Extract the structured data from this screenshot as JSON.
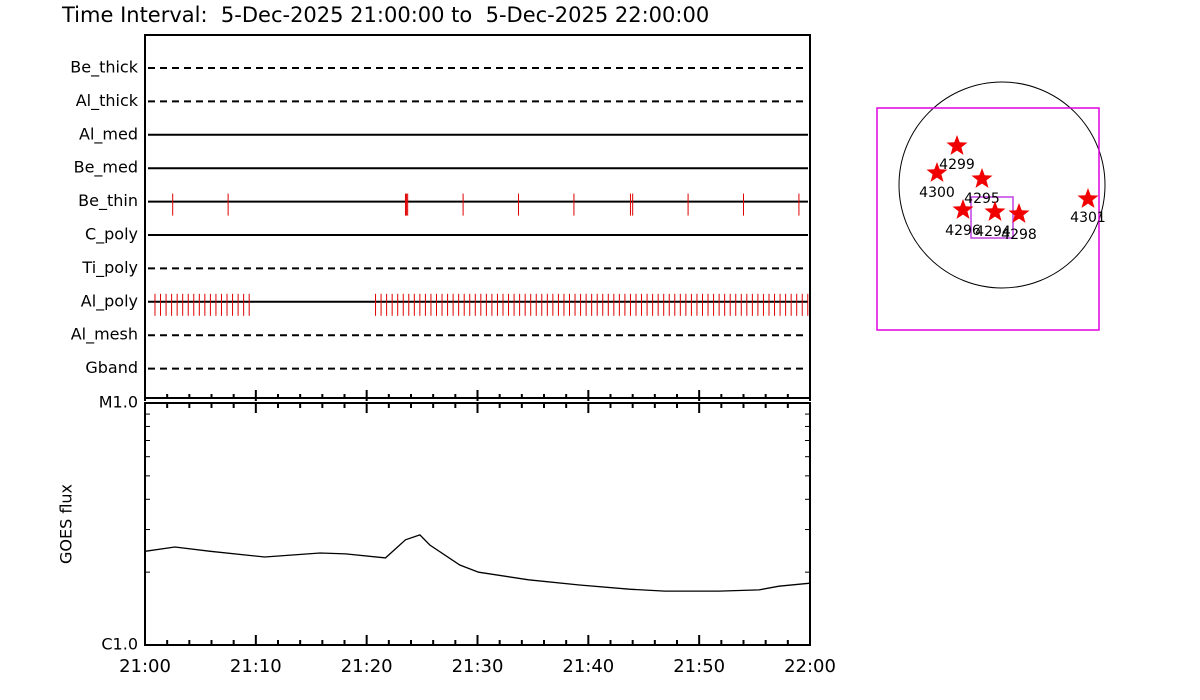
{
  "title": "Time Interval:  5-Dec-2025 21:00:00 to  5-Dec-2025 22:00:00",
  "chart_data": [
    {
      "type": "timeline",
      "xlim": [
        0,
        60
      ],
      "xticks": [
        0,
        10,
        20,
        30,
        40,
        50,
        60
      ],
      "xminorticks": [
        2,
        4,
        6,
        8,
        12,
        14,
        16,
        18,
        22,
        24,
        26,
        28,
        32,
        34,
        36,
        38,
        42,
        44,
        46,
        48,
        52,
        54,
        56,
        58
      ],
      "color": "#e00000",
      "filters": [
        {
          "name": "Be_thick",
          "style": "dashed",
          "times": []
        },
        {
          "name": "Al_thick",
          "style": "dashed",
          "times": []
        },
        {
          "name": "Al_med",
          "style": "solid",
          "times": []
        },
        {
          "name": "Be_med",
          "style": "solid",
          "times": []
        },
        {
          "name": "Be_thin",
          "style": "solid",
          "times": [
            2.5,
            7.5,
            23.5,
            23.6,
            23.7,
            28.7,
            33.7,
            38.7,
            43.8,
            44.0,
            49.0,
            54.0,
            59.0
          ]
        },
        {
          "name": "C_poly",
          "style": "solid",
          "times": []
        },
        {
          "name": "Ti_poly",
          "style": "dashed",
          "times": []
        },
        {
          "name": "Al_poly",
          "style": "solid",
          "times": [
            0.9,
            1.4,
            1.9,
            2.4,
            2.9,
            3.4,
            3.9,
            4.4,
            4.9,
            5.4,
            5.9,
            6.4,
            6.9,
            7.4,
            7.9,
            8.4,
            8.9,
            9.4,
            20.8,
            21.3,
            21.8,
            22.3,
            22.8,
            23.3,
            23.8,
            24.3,
            24.8,
            25.3,
            25.8,
            26.3,
            26.8,
            27.3,
            27.8,
            28.3,
            28.8,
            29.3,
            29.8,
            30.3,
            30.8,
            31.3,
            31.8,
            32.3,
            32.8,
            33.3,
            33.8,
            34.3,
            34.8,
            35.3,
            35.8,
            36.3,
            36.8,
            37.3,
            37.8,
            38.3,
            38.8,
            39.3,
            39.8,
            40.3,
            40.8,
            41.3,
            41.8,
            42.3,
            42.8,
            43.3,
            43.8,
            44.3,
            44.8,
            45.3,
            45.8,
            46.3,
            46.8,
            47.3,
            47.8,
            48.3,
            48.8,
            49.3,
            49.8,
            50.3,
            50.8,
            51.3,
            51.8,
            52.3,
            52.8,
            53.3,
            53.8,
            54.3,
            54.8,
            55.3,
            55.8,
            56.3,
            56.8,
            57.3,
            57.8,
            58.3,
            58.8,
            59.3,
            59.8
          ]
        },
        {
          "name": "Al_mesh",
          "style": "dashed",
          "times": []
        },
        {
          "name": "Gband",
          "style": "dashed",
          "times": []
        }
      ]
    },
    {
      "type": "line",
      "y_label": "GOES flux",
      "log_y": true,
      "color": "#000000",
      "xlim": [
        0,
        60
      ],
      "xticks": [
        {
          "value": 0,
          "label": "21:00"
        },
        {
          "value": 10,
          "label": "21:10"
        },
        {
          "value": 20,
          "label": "21:20"
        },
        {
          "value": 30,
          "label": "21:30"
        },
        {
          "value": 40,
          "label": "21:40"
        },
        {
          "value": 50,
          "label": "21:50"
        },
        {
          "value": 60,
          "label": "22:00"
        }
      ],
      "xminorticks": [
        2,
        4,
        6,
        8,
        12,
        14,
        16,
        18,
        22,
        24,
        26,
        28,
        32,
        34,
        36,
        38,
        42,
        44,
        46,
        48,
        52,
        54,
        56,
        58
      ],
      "ylim": [
        1e-06,
        1e-05
      ],
      "yticks": [
        {
          "value": 1e-06,
          "label": "C1.0"
        },
        {
          "value": 1e-05,
          "label": "M1.0"
        }
      ],
      "yminorticks": [
        2e-06,
        3e-06,
        4e-06,
        5e-06,
        6e-06,
        7e-06,
        8e-06,
        9e-06
      ],
      "x": [
        0,
        2.7,
        5.9,
        10.8,
        15.8,
        18.1,
        21.7,
        23.5,
        24.8,
        25.7,
        28.4,
        30.1,
        34.6,
        39.2,
        43.7,
        46.9,
        51.8,
        55.4,
        57.2,
        60
      ],
      "values": [
        2.44e-06,
        2.54e-06,
        2.44e-06,
        2.31e-06,
        2.4e-06,
        2.38e-06,
        2.29e-06,
        2.72e-06,
        2.85e-06,
        2.59e-06,
        2.14e-06,
        2e-06,
        1.86e-06,
        1.77e-06,
        1.7e-06,
        1.67e-06,
        1.67e-06,
        1.69e-06,
        1.75e-06,
        1.8e-06
      ]
    }
  ],
  "map": {
    "regions": [
      {
        "label": "4299"
      },
      {
        "label": "4300"
      },
      {
        "label": "4295"
      },
      {
        "label": "4296"
      },
      {
        "label": "4294"
      },
      {
        "label": "4298"
      },
      {
        "label": "4301"
      }
    ]
  }
}
